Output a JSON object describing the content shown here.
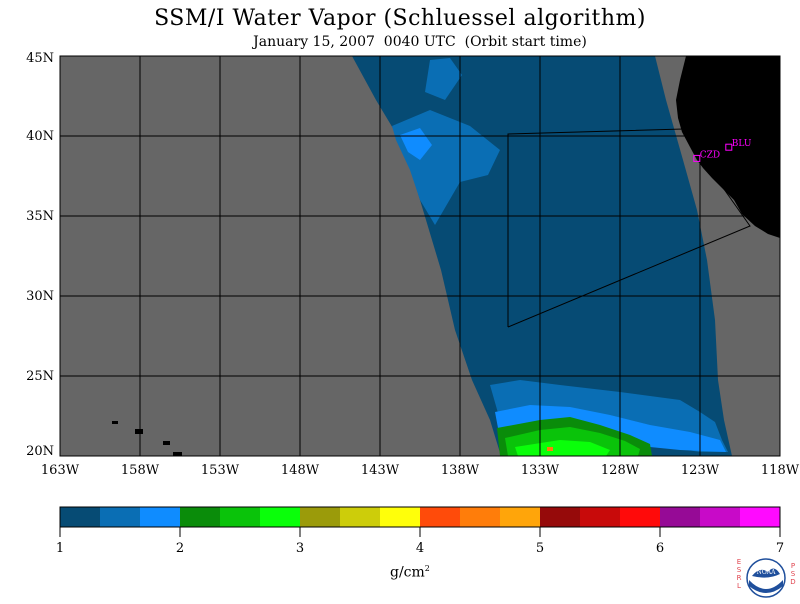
{
  "title": "SSM/I Water Vapor (Schluessel algorithm)",
  "subtitle": "January 15, 2007  0040 UTC  (Orbit start time)",
  "lat_labels": [
    "45N",
    "40N",
    "35N",
    "30N",
    "25N",
    "20N"
  ],
  "lon_labels": [
    "163W",
    "158W",
    "153W",
    "148W",
    "143W",
    "138W",
    "133W",
    "128W",
    "123W",
    "118W"
  ],
  "stations": [
    {
      "label": "CZD",
      "lat": 38.6,
      "lon": -123.2
    },
    {
      "label": "BLU",
      "lat": 39.3,
      "lon": -121.2
    }
  ],
  "colorbar": {
    "colors": [
      "#064b74",
      "#0a6eb4",
      "#0f8cff",
      "#0a8c0a",
      "#0ac30a",
      "#0aff0a",
      "#9b9b0a",
      "#cdcd0a",
      "#ffff0a",
      "#ff4b0a",
      "#ff7d0a",
      "#ffa50a",
      "#960a0a",
      "#c80a0a",
      "#ff0a0a",
      "#960a96",
      "#c80ac8",
      "#ff0aff"
    ],
    "tick_labels": [
      "1",
      "2",
      "3",
      "4",
      "5",
      "6",
      "7"
    ],
    "units_label": "g/cm",
    "units_sup": "2"
  },
  "colors": {
    "no_data": "#666666",
    "land": "#000000",
    "station": "#ff00ff"
  },
  "logo": {
    "text": "NOAA",
    "left_letters": [
      "E",
      "S",
      "R",
      "L"
    ],
    "right_letters": [
      "P",
      "S",
      "D"
    ]
  }
}
